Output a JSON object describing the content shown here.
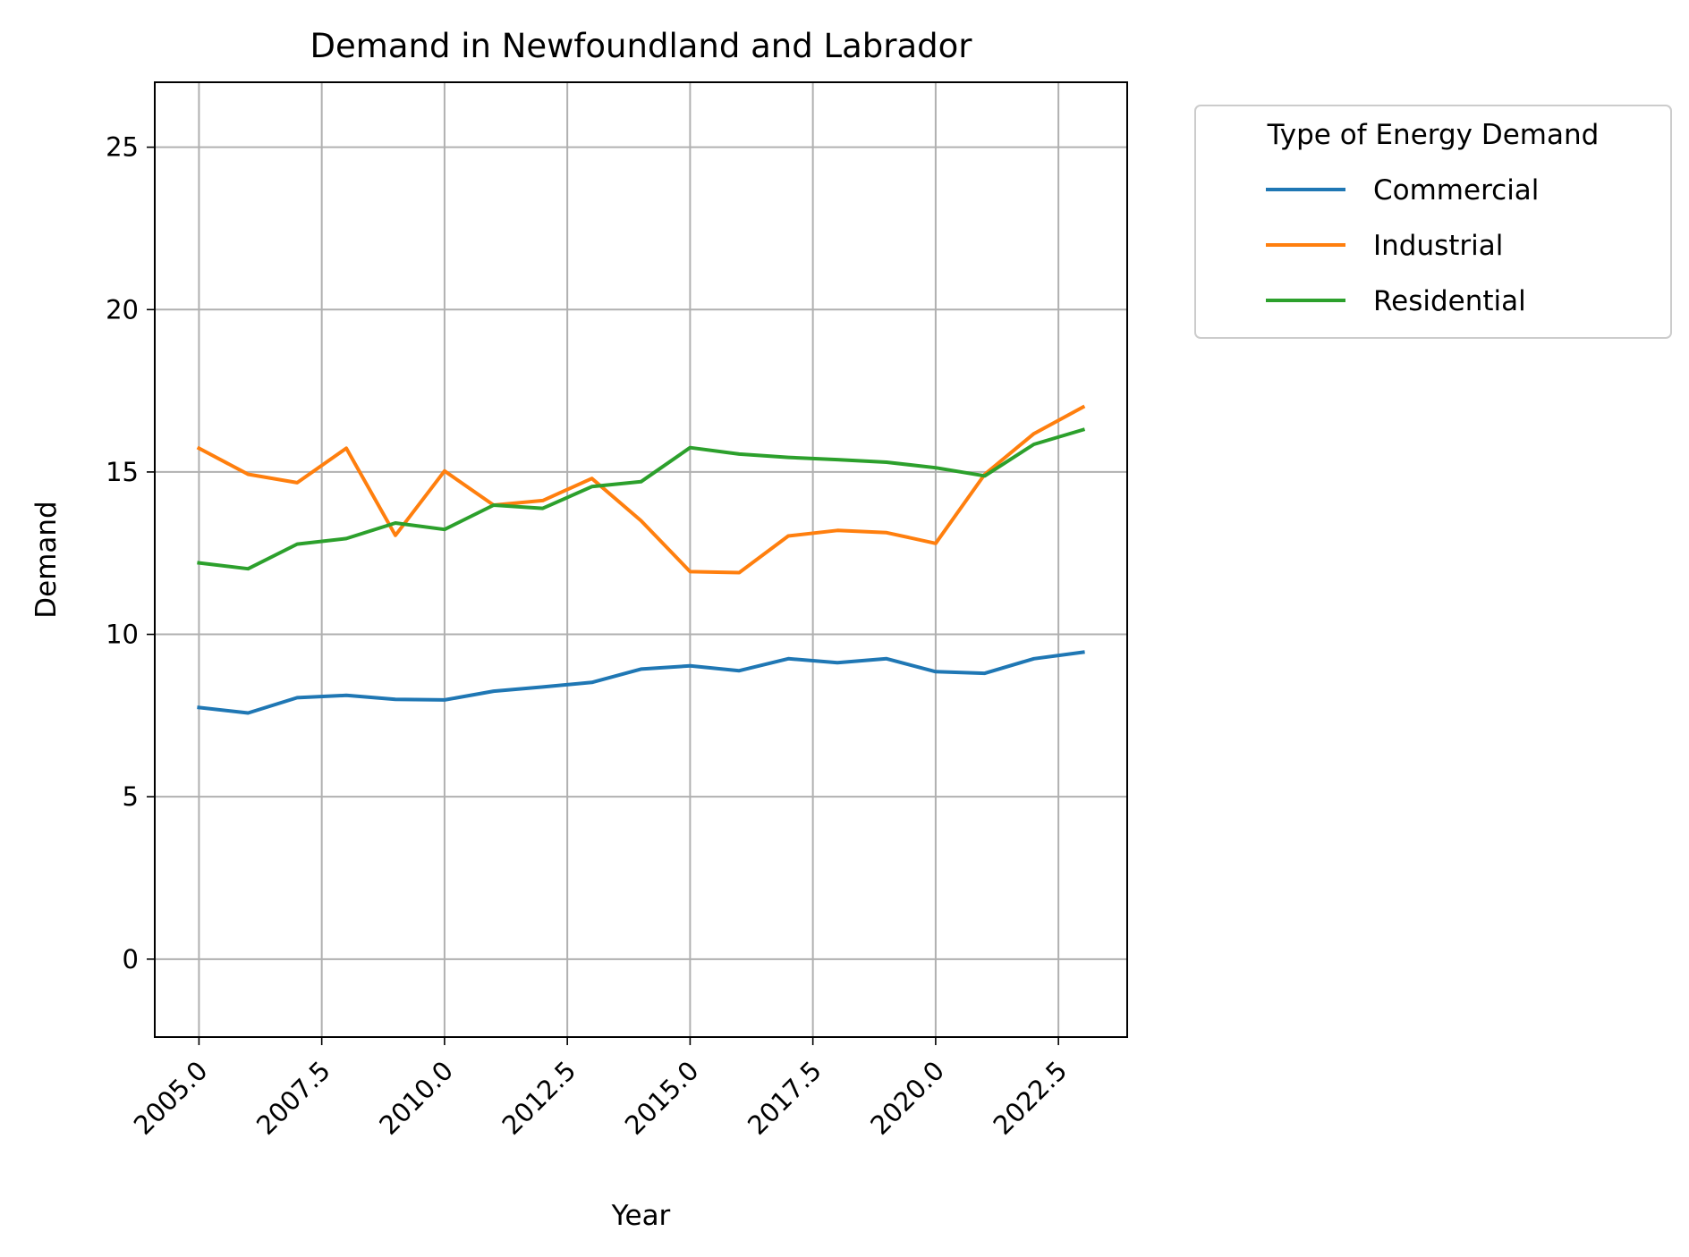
{
  "chart_data": {
    "type": "line",
    "title": "Demand in Newfoundland and Labrador",
    "xlabel": "Year",
    "ylabel": "Demand",
    "xlim": [
      2004.1,
      2023.9
    ],
    "ylim": [
      -2.4,
      27.0
    ],
    "xticks": [
      2005.0,
      2007.5,
      2010.0,
      2012.5,
      2015.0,
      2017.5,
      2020.0,
      2022.5
    ],
    "xtick_labels": [
      "2005.0",
      "2007.5",
      "2010.0",
      "2012.5",
      "2015.0",
      "2017.5",
      "2020.0",
      "2022.5"
    ],
    "yticks": [
      0,
      5,
      10,
      15,
      20,
      25
    ],
    "ytick_labels": [
      "0",
      "5",
      "10",
      "15",
      "20",
      "25"
    ],
    "grid": true,
    "legend": {
      "title": "Type of Energy Demand",
      "placement": "outside-top-right"
    },
    "x": [
      2005,
      2006,
      2007,
      2008,
      2009,
      2010,
      2011,
      2012,
      2013,
      2014,
      2015,
      2016,
      2017,
      2018,
      2019,
      2020,
      2021,
      2022,
      2023
    ],
    "series": [
      {
        "name": "Commercial",
        "color": "#1f77b4",
        "values": [
          7.75,
          7.58,
          8.05,
          8.12,
          8.0,
          7.98,
          8.25,
          8.38,
          8.52,
          8.93,
          9.03,
          8.88,
          9.25,
          9.13,
          9.25,
          8.85,
          8.8,
          9.25,
          9.45
        ]
      },
      {
        "name": "Industrial",
        "color": "#ff7f0e",
        "values": [
          15.73,
          14.93,
          14.67,
          15.73,
          13.05,
          15.03,
          13.98,
          14.12,
          14.8,
          13.5,
          11.93,
          11.9,
          13.03,
          13.2,
          13.13,
          12.8,
          14.93,
          16.18,
          17.0
        ]
      },
      {
        "name": "Residential",
        "color": "#2ca02c",
        "values": [
          12.2,
          12.02,
          12.78,
          12.95,
          13.43,
          13.23,
          13.98,
          13.88,
          14.55,
          14.7,
          15.75,
          15.55,
          15.45,
          15.38,
          15.3,
          15.13,
          14.88,
          15.85,
          16.3
        ]
      }
    ]
  }
}
